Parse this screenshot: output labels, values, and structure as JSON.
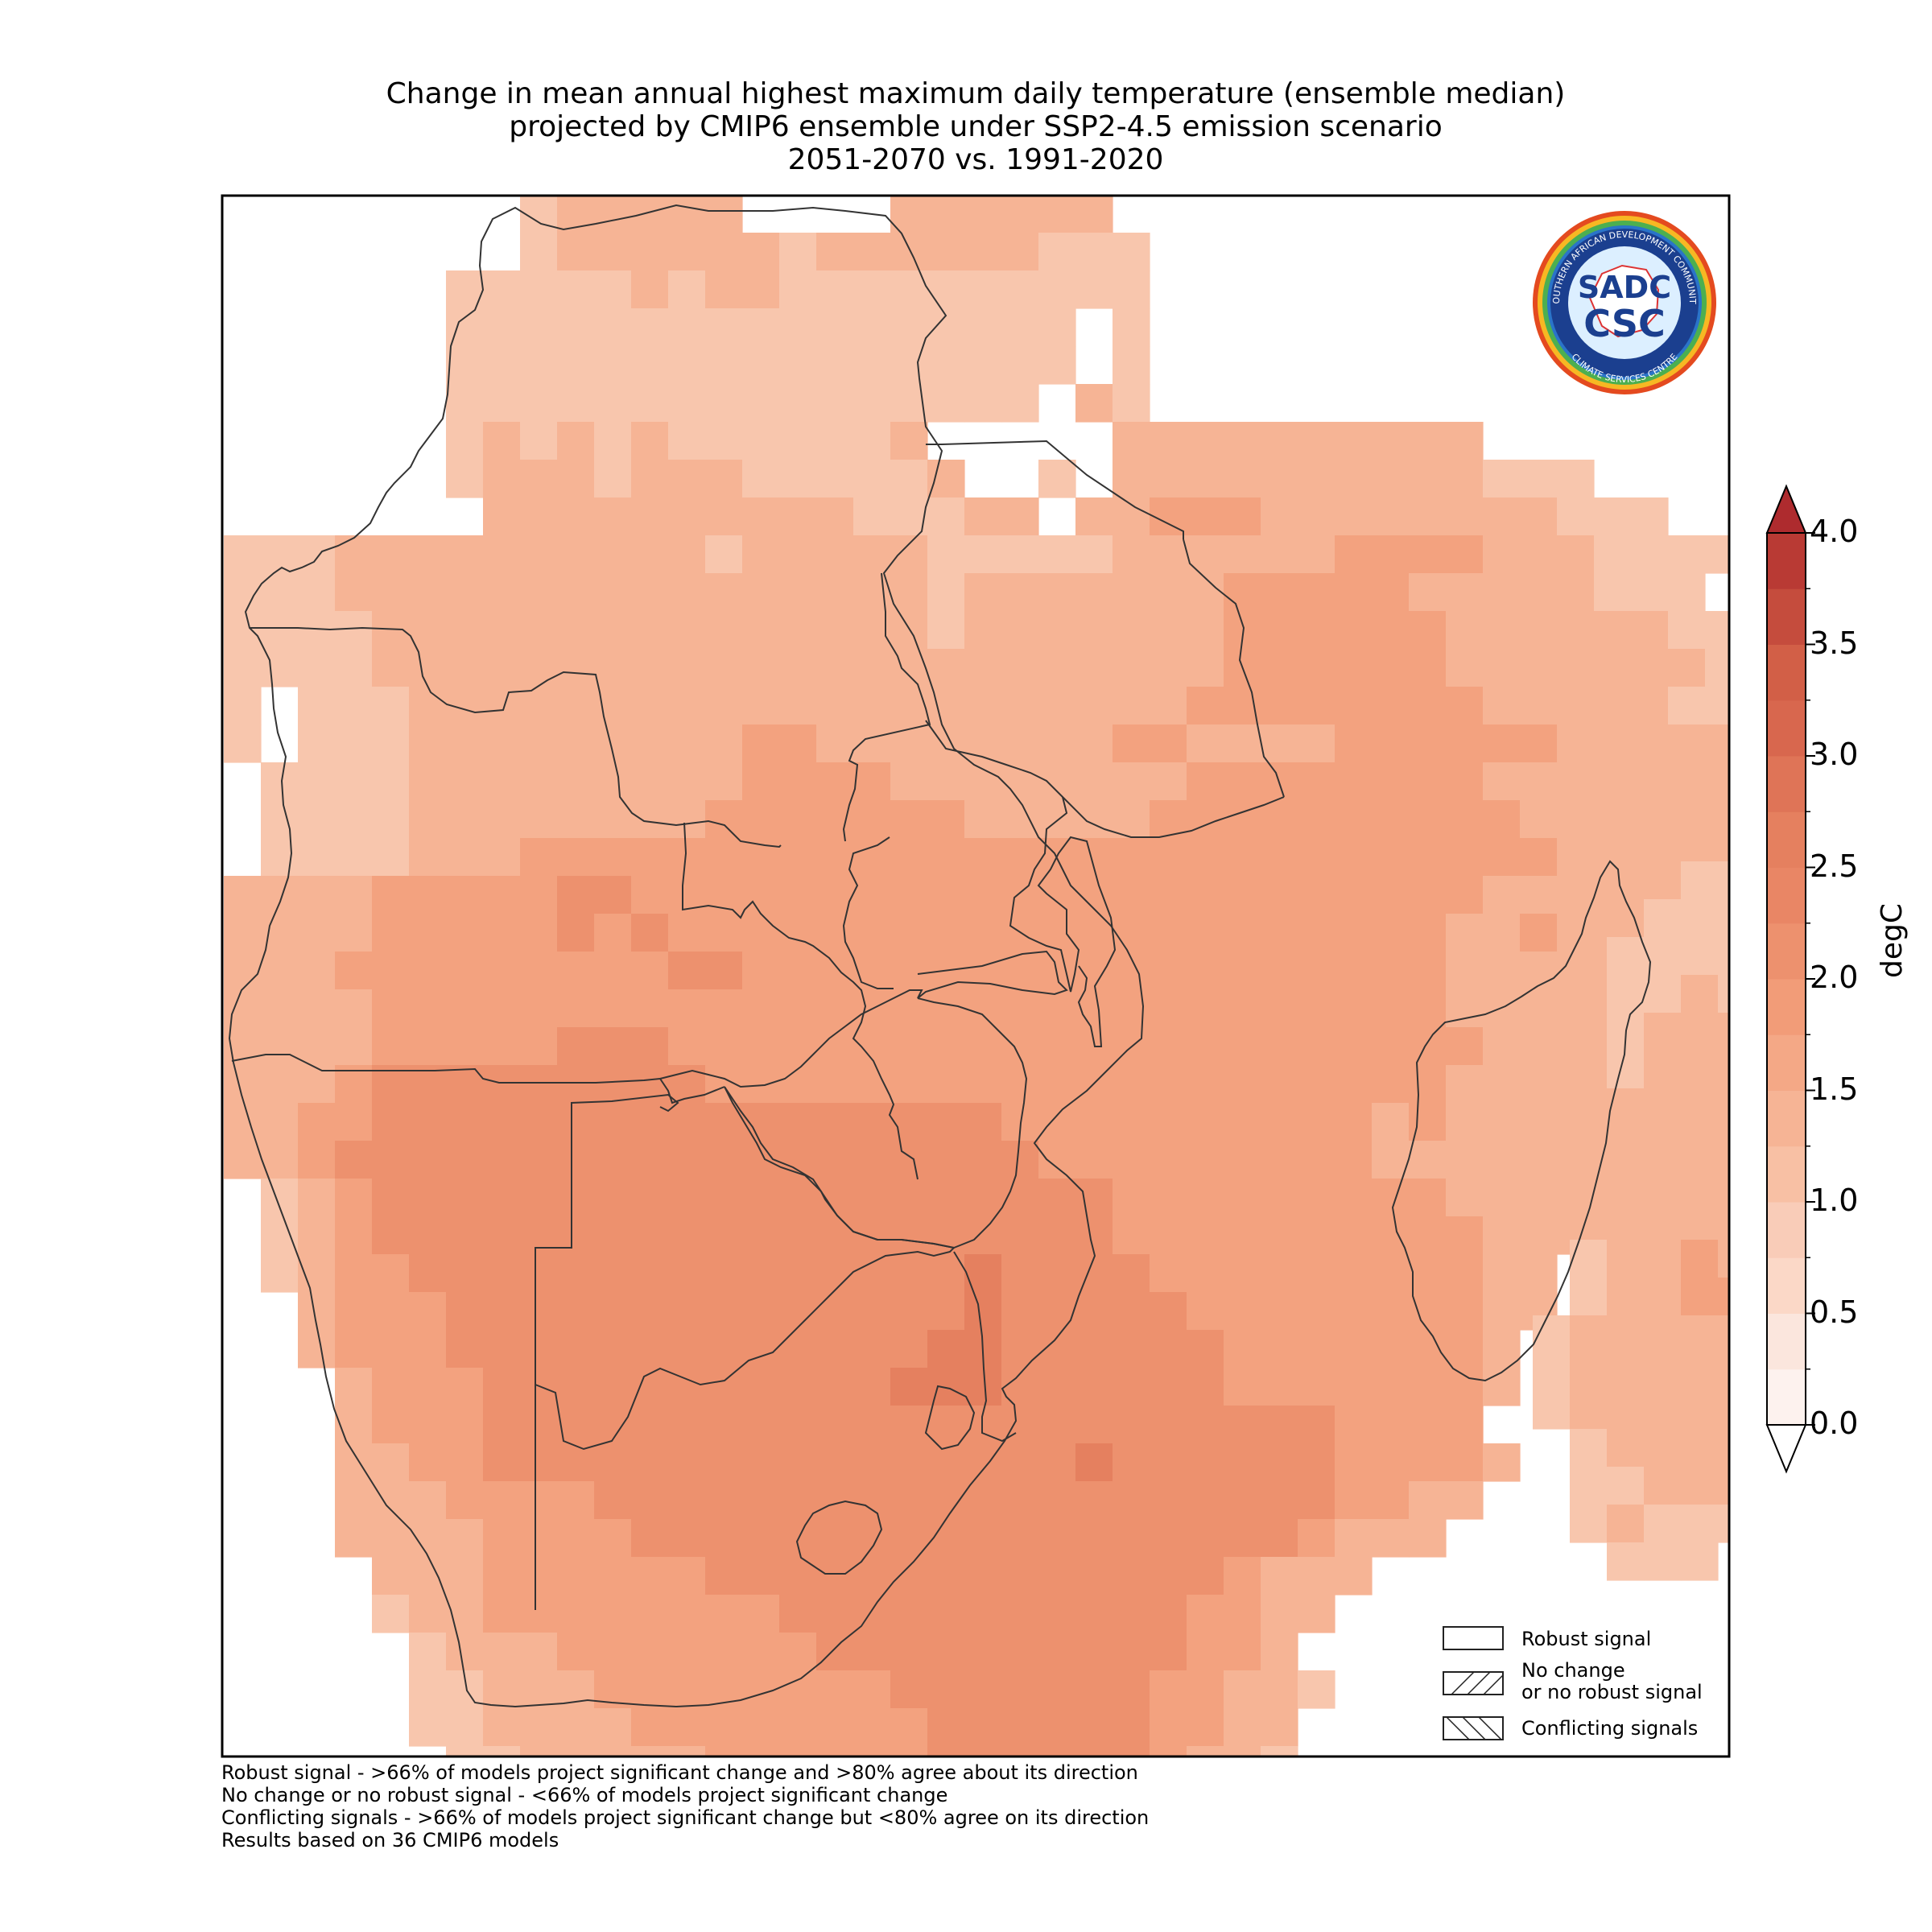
{
  "title": {
    "line1": "Change in mean annual highest maximum daily temperature (ensemble median)",
    "line2": "projected by CMIP6 ensemble under SSP2-4.5 emission scenario",
    "line3": "2051-2070 vs. 1991-2020"
  },
  "logo": {
    "text_main": "SADC",
    "text_sub": "CSC",
    "ring_text_top": "SOUTHERN AFRICAN DEVELOPMENT COMMUNITY",
    "ring_text_bottom": "CLIMATE SERVICES CENTRE"
  },
  "colorbar": {
    "label": "degC",
    "ticks": [
      "0.0",
      "0.5",
      "1.0",
      "1.5",
      "2.0",
      "2.5",
      "3.0",
      "3.5",
      "4.0"
    ],
    "min": 0.0,
    "max": 4.0,
    "extend": "both",
    "colors": [
      "#ffffff",
      "#fbe9e2",
      "#fbd8c7",
      "#f8c6ad",
      "#f6b495",
      "#f3a27f",
      "#ed916e",
      "#e5805f",
      "#dc6f53",
      "#d25f47",
      "#c54c3d",
      "#b93a34",
      "#ae2b2e"
    ]
  },
  "legend": {
    "robust": "Robust signal",
    "no_change_line1": "No change",
    "no_change_line2": "or no robust signal",
    "conflicting": "Conflicting signals"
  },
  "footnotes": [
    "Robust signal - >66% of models project significant change and >80% agree about its direction",
    "No change or no robust signal - <66% of models project significant change",
    "Conflicting signals - >66% of models project significant change but <80% agree on its direction",
    "Results based on 36 CMIP6 models"
  ],
  "map_colors": {
    "l1": "#f8c6ad",
    "l2": "#f6b495",
    "l3": "#f3a27f",
    "l4": "#ed916e",
    "l5": "#e5805f",
    "l6": "#dc6f53"
  }
}
